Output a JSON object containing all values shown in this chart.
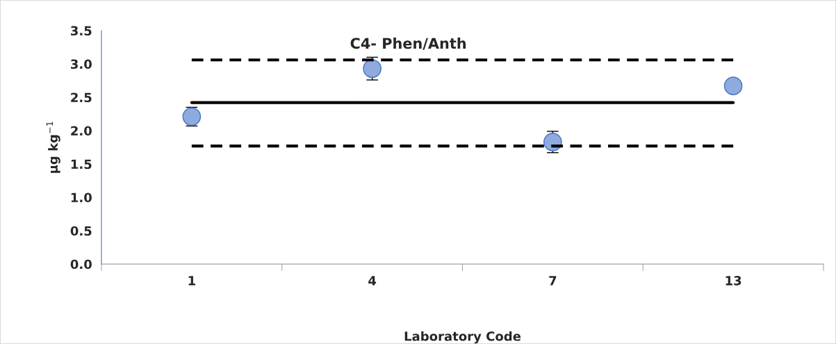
{
  "chart_data": {
    "type": "scatter",
    "title": "C4- Phen/Anth",
    "xlabel": "Laboratory Code",
    "ylabel": "µg kg$^{−1}$",
    "categories": [
      "1",
      "4",
      "7",
      "13"
    ],
    "series": [
      {
        "color": "#8faadc",
        "values": [
          2.21,
          2.93,
          1.83,
          2.67
        ],
        "errors": [
          0.14,
          0.17,
          0.16,
          null
        ],
        "marker": "circle"
      },
      {
        "type": "line",
        "color": "#000000",
        "values": [
          2.42,
          2.42,
          2.42,
          2.42
        ],
        "line_style": "solid",
        "marker": "none"
      },
      {
        "type": "line",
        "color": "#000000",
        "values": [
          3.06,
          3.06,
          3.06,
          3.06
        ],
        "line_style": "dashed",
        "marker": "none"
      },
      {
        "type": "line",
        "color": "#000000",
        "values": [
          1.77,
          1.77,
          1.77,
          1.77
        ],
        "line_style": "dashed",
        "marker": "none"
      }
    ],
    "ylim": [
      0,
      3.5
    ],
    "yticks": [
      {
        "value": 0,
        "label": "0.0"
      },
      {
        "value": 0.5,
        "label": "0.5"
      },
      {
        "value": 1,
        "label": "1.0"
      },
      {
        "value": 1.5,
        "label": "1.5"
      },
      {
        "value": 2,
        "label": "2.0"
      },
      {
        "value": 2.5,
        "label": "2.5"
      },
      {
        "value": 3,
        "label": "3.0"
      },
      {
        "value": 3.5,
        "label": "3.5"
      }
    ],
    "grid": false,
    "legend": false
  }
}
